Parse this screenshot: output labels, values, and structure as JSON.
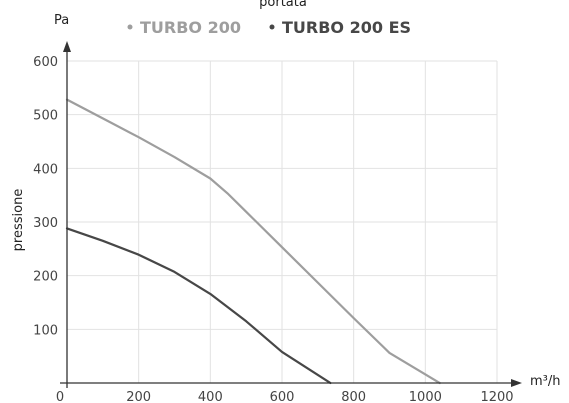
{
  "chart_data": {
    "type": "line",
    "title": "portata",
    "xlabel": "m³/h",
    "ylabel": "pressione",
    "y_unit": "Pa",
    "xlim": [
      0,
      1200
    ],
    "ylim": [
      0,
      600
    ],
    "x_ticks": [
      0,
      200,
      400,
      600,
      800,
      1000,
      1200
    ],
    "y_ticks": [
      100,
      200,
      300,
      400,
      500,
      600
    ],
    "grid": true,
    "legend_position": "top",
    "series": [
      {
        "name": "TURBO 200",
        "color": "#9e9e9e",
        "points": [
          [
            0,
            528
          ],
          [
            100,
            493
          ],
          [
            200,
            458
          ],
          [
            300,
            421
          ],
          [
            400,
            381
          ],
          [
            450,
            352
          ],
          [
            500,
            319
          ],
          [
            600,
            253
          ],
          [
            700,
            187
          ],
          [
            800,
            121
          ],
          [
            900,
            56
          ],
          [
            1040,
            0
          ]
        ]
      },
      {
        "name": "TURBO 200 ES",
        "color": "#474747",
        "points": [
          [
            0,
            288
          ],
          [
            100,
            265
          ],
          [
            200,
            239
          ],
          [
            300,
            207
          ],
          [
            400,
            166
          ],
          [
            500,
            115
          ],
          [
            600,
            58
          ],
          [
            735,
            0
          ]
        ]
      }
    ]
  }
}
